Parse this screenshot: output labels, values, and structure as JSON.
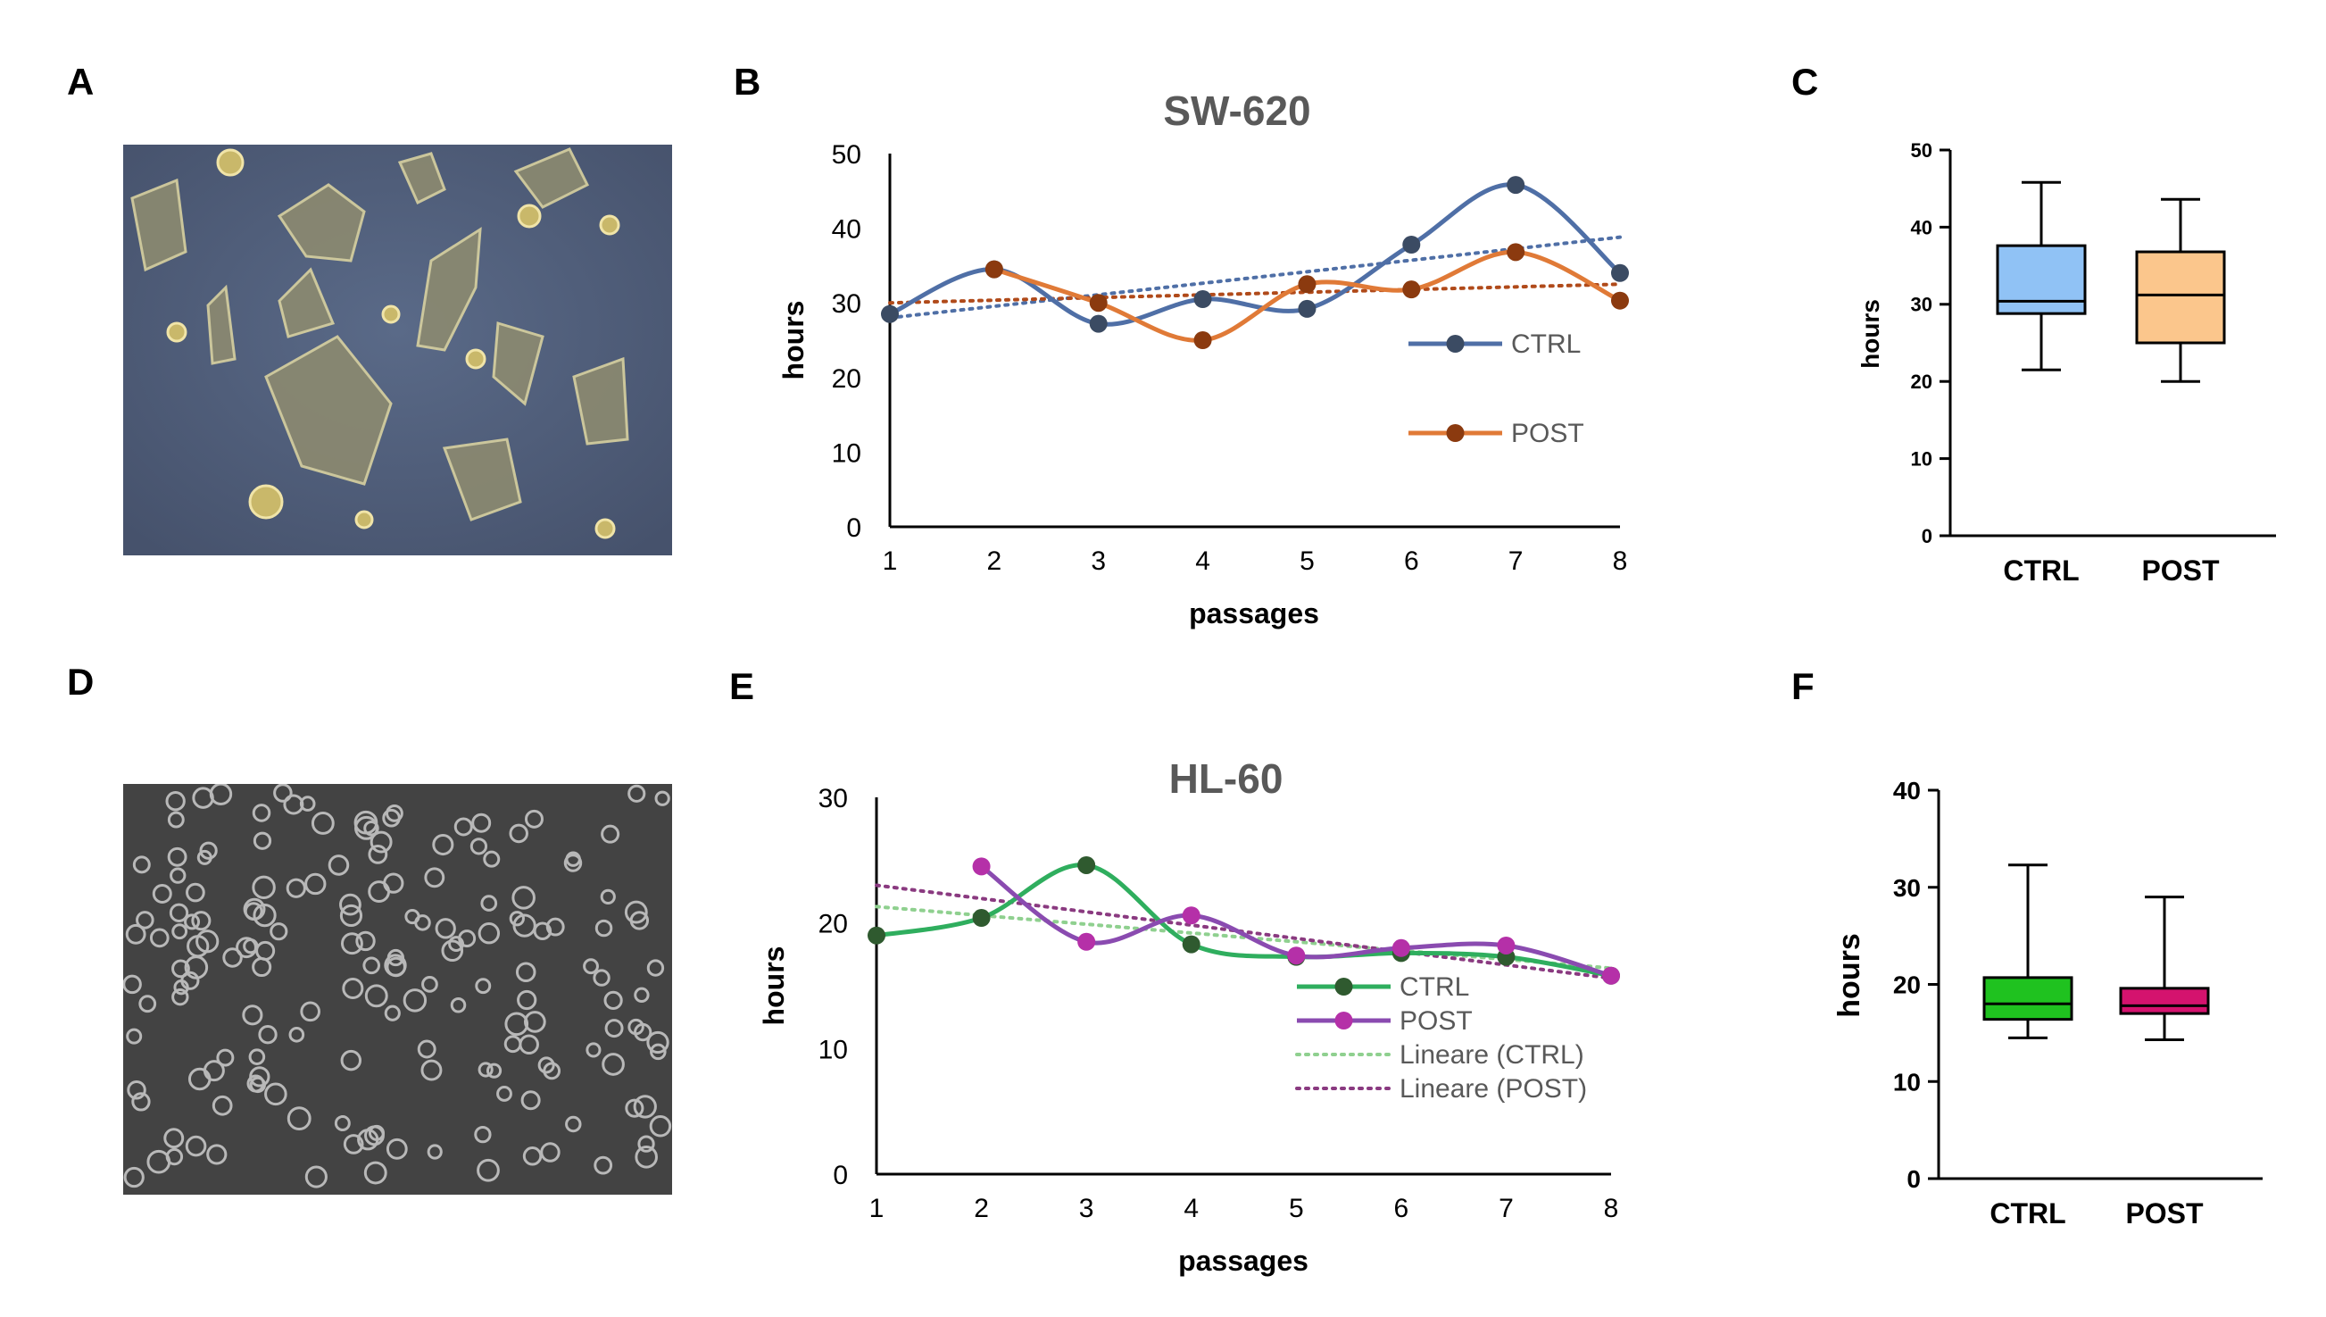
{
  "panels": {
    "a": "A",
    "b": "B",
    "c": "C",
    "d": "D",
    "e": "E",
    "f": "F"
  },
  "photos": {
    "top_bg": "#4a5a78",
    "bottom_bg": "#3d3d3d"
  },
  "chart_data": [
    {
      "id": "B",
      "type": "line",
      "title": "SW-620",
      "xlabel": "passages",
      "ylabel": "hours",
      "x": [
        1,
        2,
        3,
        4,
        5,
        6,
        7,
        8
      ],
      "ylim": [
        0,
        50
      ],
      "yticks": [
        0,
        10,
        20,
        30,
        40,
        50
      ],
      "series": [
        {
          "name": "CTRL",
          "values": [
            28.5,
            34.5,
            27.2,
            30.5,
            29.2,
            37.8,
            45.8,
            34.0
          ],
          "color": "#4f6fa6",
          "marker": "#3b4b63"
        },
        {
          "name": "POST",
          "values": [
            null,
            34.5,
            30.0,
            25.0,
            32.5,
            31.8,
            36.8,
            30.3
          ],
          "color": "#e07a37",
          "marker": "#8b3a0f"
        }
      ],
      "trendlines": [
        {
          "series": "CTRL",
          "from": [
            1,
            28.0
          ],
          "to": [
            8,
            38.8
          ],
          "color": "#4f6fa6"
        },
        {
          "series": "POST",
          "from": [
            1,
            30.0
          ],
          "to": [
            8,
            32.5
          ],
          "color": "#b04a1a"
        }
      ],
      "legend": [
        "CTRL",
        "POST"
      ]
    },
    {
      "id": "C",
      "type": "box",
      "ylabel": "hours",
      "categories": [
        "CTRL",
        "POST"
      ],
      "ylim": [
        0,
        50
      ],
      "yticks": [
        0,
        10,
        20,
        30,
        40,
        50
      ],
      "boxes": [
        {
          "name": "CTRL",
          "min": 21.5,
          "q1": 28.8,
          "median": 30.4,
          "q3": 37.6,
          "max": 45.8,
          "color": "#90c2f5"
        },
        {
          "name": "POST",
          "min": 20.0,
          "q1": 25.0,
          "median": 31.2,
          "q3": 36.8,
          "max": 43.6,
          "color": "#fbc68c"
        }
      ]
    },
    {
      "id": "E",
      "type": "line",
      "title": "HL-60",
      "xlabel": "passages",
      "ylabel": "hours",
      "x": [
        1,
        2,
        3,
        4,
        5,
        6,
        7,
        8
      ],
      "ylim": [
        0,
        30
      ],
      "yticks": [
        0,
        10,
        20,
        30
      ],
      "series": [
        {
          "name": "CTRL",
          "values": [
            19.0,
            20.4,
            24.6,
            18.3,
            17.3,
            17.6,
            17.3,
            15.8
          ],
          "color": "#2fae5e",
          "marker": "#2f5a2f"
        },
        {
          "name": "POST",
          "values": [
            null,
            24.5,
            18.5,
            20.6,
            17.4,
            18.0,
            18.2,
            15.8
          ],
          "color": "#8a4bb0",
          "marker": "#b530a8"
        }
      ],
      "trendlines": [
        {
          "series": "Lineare (CTRL)",
          "from": [
            1,
            21.3
          ],
          "to": [
            8,
            16.4
          ],
          "color": "#8fd08f"
        },
        {
          "series": "Lineare (POST)",
          "from": [
            1,
            23.0
          ],
          "to": [
            8,
            15.6
          ],
          "color": "#8a3a80"
        }
      ],
      "legend": [
        "CTRL",
        "POST",
        "Lineare (CTRL)",
        "Lineare (POST)"
      ]
    },
    {
      "id": "F",
      "type": "box",
      "ylabel": "hours",
      "categories": [
        "CTRL",
        "POST"
      ],
      "ylim": [
        0,
        40
      ],
      "yticks": [
        0,
        10,
        20,
        30,
        40
      ],
      "boxes": [
        {
          "name": "CTRL",
          "min": 14.5,
          "q1": 16.4,
          "median": 18.0,
          "q3": 20.7,
          "max": 32.3,
          "color": "#1fc21f"
        },
        {
          "name": "POST",
          "min": 14.3,
          "q1": 17.0,
          "median": 17.8,
          "q3": 19.6,
          "max": 29.0,
          "color": "#d4136e"
        }
      ]
    }
  ]
}
